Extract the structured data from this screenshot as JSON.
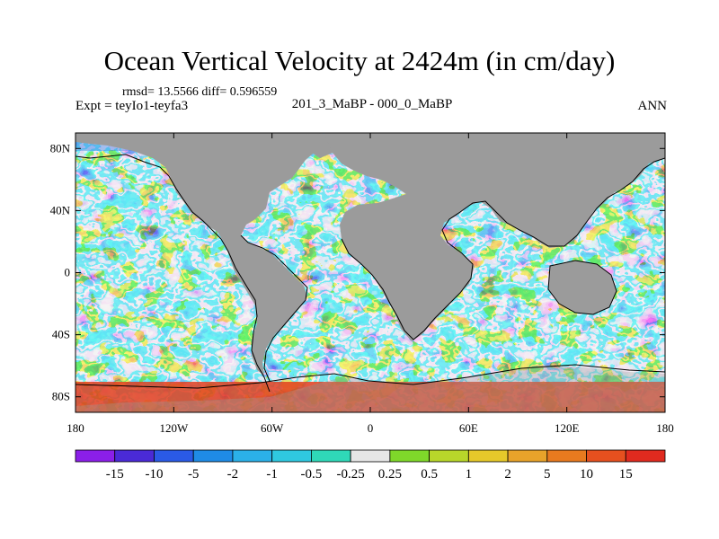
{
  "figure": {
    "title": "Ocean Vertical Velocity at 2424m (in cm/day)",
    "stats": "rmsd= 13.5566 diff= 0.596559",
    "experiment": "Expt = teyIo1-teyfa3",
    "period": "201_3_MaBP - 000_0_MaBP",
    "season": "ANN"
  },
  "axes": {
    "lat_ticks": [
      "80N",
      "40N",
      "0",
      "40S",
      "80S"
    ],
    "lon_ticks": [
      "180",
      "120W",
      "60W",
      "0",
      "60E",
      "120E",
      "180"
    ]
  },
  "colorbar": {
    "labels": [
      "-15",
      "-10",
      "-5",
      "-2",
      "-1",
      "-0.5",
      "-0.25",
      "0.25",
      "0.5",
      "1",
      "2",
      "5",
      "10",
      "15"
    ],
    "colors": [
      "#8b1fe8",
      "#4a2ad6",
      "#2a5ae6",
      "#1f8be6",
      "#2bb0e8",
      "#2fc8e0",
      "#2fd8b8",
      "#e6e6e6",
      "#7fd82a",
      "#b8d62a",
      "#e6c82a",
      "#e8a32a",
      "#e87a1f",
      "#e6501f",
      "#e02a1f"
    ]
  },
  "colors": {
    "land": "#9b9b9b",
    "coastline": "#000000"
  }
}
